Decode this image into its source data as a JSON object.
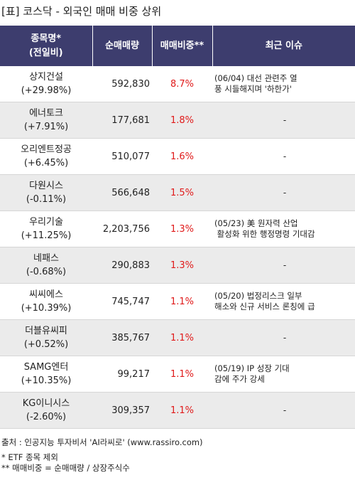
{
  "title": "[표] 코스닥 - 외국인 매매 비중 상위",
  "columns": {
    "name": [
      "종목명*",
      "(전일비)"
    ],
    "volume": "순매매량",
    "ratio": "매매비중**",
    "issue": "최근 이슈"
  },
  "rows": [
    {
      "name": "상지건설",
      "change": "(+29.98%)",
      "volume": "592,830",
      "ratio": "8.7%",
      "issue": [
        "(06/04) 대선 관련주 열",
        "풍 시들해지며 '하한가'"
      ]
    },
    {
      "name": "에너토크",
      "change": "(+7.91%)",
      "volume": "177,681",
      "ratio": "1.8%",
      "issue": [
        "-"
      ]
    },
    {
      "name": "오리엔트정공",
      "change": "(+6.45%)",
      "volume": "510,077",
      "ratio": "1.6%",
      "issue": [
        "-"
      ]
    },
    {
      "name": "다원시스",
      "change": "(-0.11%)",
      "volume": "566,648",
      "ratio": "1.5%",
      "issue": [
        "-"
      ]
    },
    {
      "name": "우리기술",
      "change": "(+11.25%)",
      "volume": "2,203,756",
      "ratio": "1.3%",
      "issue": [
        "(05/23) 美 원자력 산업",
        " 활성화 위한 행정명령 기대감"
      ]
    },
    {
      "name": "네패스",
      "change": "(-0.68%)",
      "volume": "290,883",
      "ratio": "1.3%",
      "issue": [
        "-"
      ]
    },
    {
      "name": "씨씨에스",
      "change": "(+10.39%)",
      "volume": "745,747",
      "ratio": "1.1%",
      "issue": [
        "(05/20) 법정리스크 일부",
        "해소와 신규 서비스 론칭에 급"
      ]
    },
    {
      "name": "더블유씨피",
      "change": "(+0.52%)",
      "volume": "385,767",
      "ratio": "1.1%",
      "issue": [
        "-"
      ]
    },
    {
      "name": "SAMG엔터",
      "change": "(+10.35%)",
      "volume": "99,217",
      "ratio": "1.1%",
      "issue": [
        "(05/19) IP 성장 기대",
        "감에 주가 강세"
      ]
    },
    {
      "name": "KG이니시스",
      "change": "(-2.60%)",
      "volume": "309,357",
      "ratio": "1.1%",
      "issue": [
        "-"
      ]
    }
  ],
  "source": "출처 : 인공지능 투자비서 'AI라씨로' (www.rassiro.com)",
  "footnotes": [
    "* ETF 종목 제외",
    "** 매매비중 = 순매매량 / 상장주식수"
  ],
  "colors": {
    "header_bg": "#3d3d6e",
    "ratio_text": "#e01a1a",
    "row_alt_bg": "#ebebeb"
  }
}
